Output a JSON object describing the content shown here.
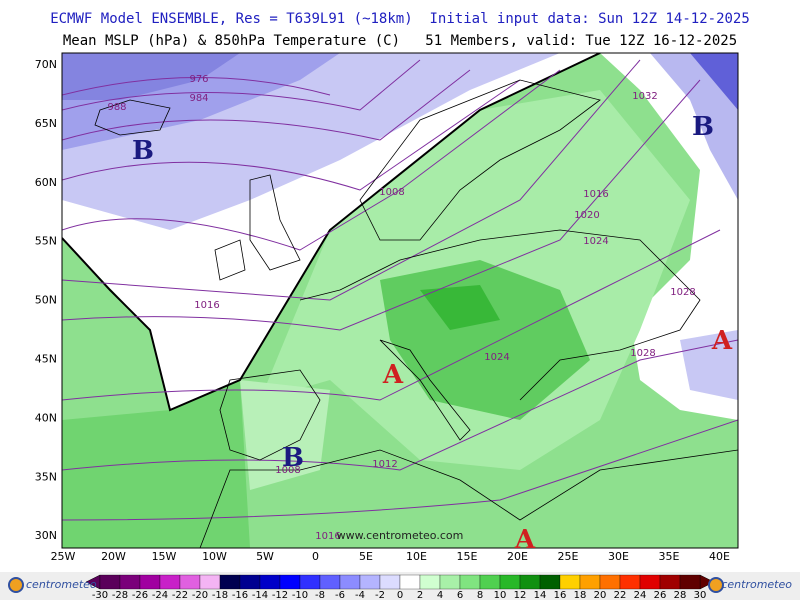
{
  "header": {
    "line1": "ECMWF Model ENSEMBLE, Res = T639L91 (~18km)  Initial input data: Sun 12Z 14-12-2025",
    "line2": "Mean MSLP (hPa) & 850hPa Temperature (C)   51 Members, valid: Tue 12Z 16-12-2025"
  },
  "map": {
    "lat_labels": [
      "70N",
      "65N",
      "60N",
      "55N",
      "50N",
      "45N",
      "40N",
      "35N",
      "30N"
    ],
    "lon_labels": [
      "25W",
      "20W",
      "15W",
      "10W",
      "5W",
      "0",
      "5E",
      "10E",
      "15E",
      "20E",
      "25E",
      "30E",
      "35E",
      "40E"
    ],
    "isobar_labels": [
      "976",
      "984",
      "988",
      "1008",
      "1016",
      "1020",
      "1024",
      "1028",
      "1032",
      "1028",
      "1024",
      "1016",
      "1012",
      "1008",
      "1016"
    ],
    "centers": [
      "B",
      "B",
      "B",
      "A",
      "A",
      "A"
    ],
    "watermark": "www.centrometeo.com"
  },
  "colorbar": {
    "labels": [
      -30,
      -28,
      -26,
      -24,
      -22,
      -20,
      -18,
      -16,
      -14,
      -12,
      -10,
      -8,
      -6,
      -4,
      -2,
      0,
      2,
      4,
      6,
      8,
      10,
      12,
      14,
      16,
      18,
      20,
      22,
      24,
      26,
      28,
      30
    ],
    "colors": [
      "#5a005a",
      "#7a007a",
      "#a000a0",
      "#c820c8",
      "#e060e0",
      "#f4b4f4",
      "#000050",
      "#000090",
      "#0000c8",
      "#0000ff",
      "#3030ff",
      "#6060ff",
      "#8c8cff",
      "#b4b4ff",
      "#dcdcff",
      "#ffffff",
      "#d0ffd0",
      "#a8f0a8",
      "#80e480",
      "#50d050",
      "#28b828",
      "#109010",
      "#006000",
      "#ffd000",
      "#ffa000",
      "#ff7000",
      "#ff3000",
      "#e00000",
      "#a00000",
      "#600000"
    ]
  },
  "logos": [
    "centrometeo",
    "centrometeo"
  ]
}
